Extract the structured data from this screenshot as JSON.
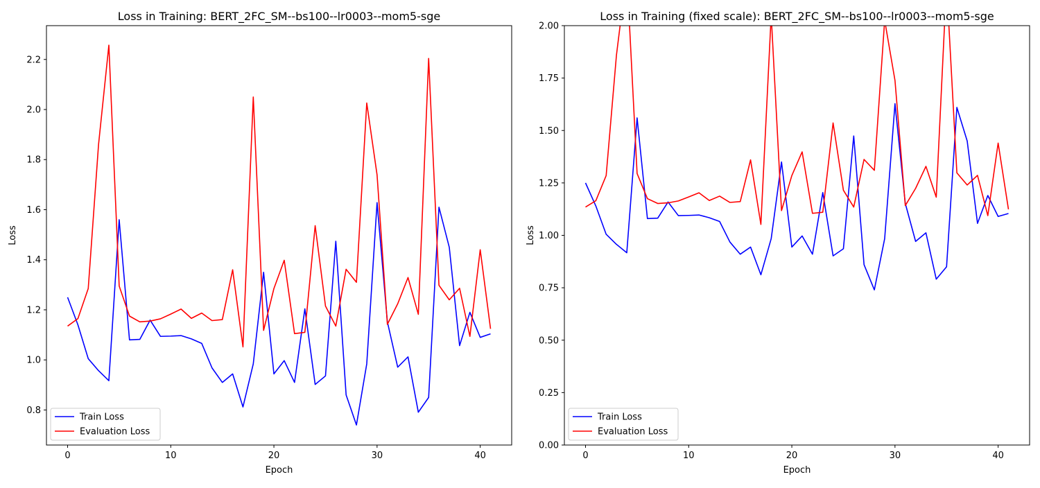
{
  "chart_data": [
    {
      "type": "line",
      "title": "Loss in Training: BERT_2FC_SM--bs100--lr0003--mom5-sge",
      "xlabel": "Epoch",
      "ylabel": "Loss",
      "xlim": [
        -2.05,
        43.05
      ],
      "ylim": [
        0.66,
        2.335
      ],
      "xticks": [
        0,
        10,
        20,
        30,
        40
      ],
      "yticks": [
        0.8,
        1.0,
        1.2,
        1.4,
        1.6,
        1.8,
        2.0,
        2.2
      ],
      "ytick_labels": [
        "0.8",
        "1.0",
        "1.2",
        "1.4",
        "1.6",
        "1.8",
        "2.0",
        "2.2"
      ],
      "legend": "lower-left",
      "grid": false,
      "x": [
        0,
        1,
        2,
        3,
        4,
        5,
        6,
        7,
        8,
        9,
        10,
        11,
        12,
        13,
        14,
        15,
        16,
        17,
        18,
        19,
        20,
        21,
        22,
        23,
        24,
        25,
        26,
        27,
        28,
        29,
        30,
        31,
        32,
        33,
        34,
        35,
        36,
        37,
        38,
        39,
        40,
        41
      ],
      "series": [
        {
          "name": "Train Loss",
          "color": "#0000ff",
          "values": [
            1.25,
            1.14,
            1.005,
            0.957,
            0.917,
            1.56,
            1.08,
            1.082,
            1.159,
            1.094,
            1.095,
            1.097,
            1.084,
            1.066,
            0.968,
            0.91,
            0.944,
            0.812,
            0.984,
            1.35,
            0.944,
            0.997,
            0.91,
            1.204,
            0.902,
            0.936,
            1.474,
            0.86,
            0.74,
            0.984,
            1.628,
            1.152,
            0.971,
            1.012,
            0.791,
            0.85,
            1.61,
            1.45,
            1.057,
            1.19,
            1.09,
            1.104
          ]
        },
        {
          "name": "Evaluation Loss",
          "color": "#ff0000",
          "values": [
            1.135,
            1.165,
            1.285,
            1.86,
            2.257,
            1.295,
            1.175,
            1.152,
            1.155,
            1.164,
            1.183,
            1.203,
            1.166,
            1.187,
            1.157,
            1.161,
            1.36,
            1.052,
            2.05,
            1.118,
            1.285,
            1.398,
            1.105,
            1.11,
            1.536,
            1.215,
            1.135,
            1.362,
            1.31,
            2.026,
            1.739,
            1.142,
            1.224,
            1.329,
            1.182,
            2.204,
            1.298,
            1.24,
            1.286,
            1.094,
            1.44,
            1.124
          ]
        }
      ]
    },
    {
      "type": "line",
      "title": "Loss in Training (fixed scale): BERT_2FC_SM--bs100--lr0003--mom5-sge",
      "xlabel": "Epoch",
      "ylabel": "Loss",
      "xlim": [
        -2.05,
        43.05
      ],
      "ylim": [
        0,
        2
      ],
      "xticks": [
        0,
        10,
        20,
        30,
        40
      ],
      "yticks": [
        0,
        0.25,
        0.5,
        0.75,
        1.0,
        1.25,
        1.5,
        1.75,
        2.0
      ],
      "ytick_labels": [
        "0.00",
        "0.25",
        "0.50",
        "0.75",
        "1.00",
        "1.25",
        "1.50",
        "1.75",
        "2.00"
      ],
      "legend": "lower-left",
      "grid": false,
      "x": [
        0,
        1,
        2,
        3,
        4,
        5,
        6,
        7,
        8,
        9,
        10,
        11,
        12,
        13,
        14,
        15,
        16,
        17,
        18,
        19,
        20,
        21,
        22,
        23,
        24,
        25,
        26,
        27,
        28,
        29,
        30,
        31,
        32,
        33,
        34,
        35,
        36,
        37,
        38,
        39,
        40,
        41
      ],
      "series": [
        {
          "name": "Train Loss",
          "color": "#0000ff",
          "values": [
            1.25,
            1.14,
            1.005,
            0.957,
            0.917,
            1.56,
            1.08,
            1.082,
            1.159,
            1.094,
            1.095,
            1.097,
            1.084,
            1.066,
            0.968,
            0.91,
            0.944,
            0.812,
            0.984,
            1.35,
            0.944,
            0.997,
            0.91,
            1.204,
            0.902,
            0.936,
            1.474,
            0.86,
            0.74,
            0.984,
            1.628,
            1.152,
            0.971,
            1.012,
            0.791,
            0.85,
            1.61,
            1.45,
            1.057,
            1.19,
            1.09,
            1.104
          ]
        },
        {
          "name": "Evaluation Loss",
          "color": "#ff0000",
          "values": [
            1.135,
            1.165,
            1.285,
            1.86,
            2.257,
            1.295,
            1.175,
            1.152,
            1.155,
            1.164,
            1.183,
            1.203,
            1.166,
            1.187,
            1.157,
            1.161,
            1.36,
            1.052,
            2.05,
            1.118,
            1.285,
            1.398,
            1.105,
            1.11,
            1.536,
            1.215,
            1.135,
            1.362,
            1.31,
            2.026,
            1.739,
            1.142,
            1.224,
            1.329,
            1.182,
            2.204,
            1.298,
            1.24,
            1.286,
            1.094,
            1.44,
            1.124
          ]
        }
      ]
    }
  ]
}
